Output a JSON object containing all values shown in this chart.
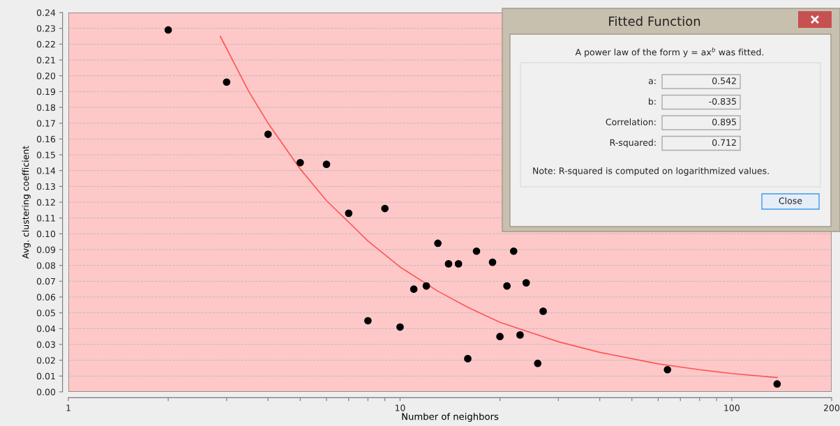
{
  "chart_data": {
    "type": "scatter",
    "xlabel": "Number of neighbors",
    "ylabel": "Avg. clustering coefficient",
    "log": "x",
    "grid": "y",
    "marker": "circle",
    "xlim": [
      1,
      200
    ],
    "ylim": [
      0,
      0.24
    ],
    "xticks": [
      1,
      {
        "value": 2,
        "label": null
      },
      {
        "value": 3,
        "label": null
      },
      {
        "value": 4,
        "label": null
      },
      {
        "value": 5,
        "label": null
      },
      {
        "value": 6,
        "label": null
      },
      {
        "value": 7,
        "label": null
      },
      {
        "value": 8,
        "label": null
      },
      {
        "value": 9,
        "label": null
      },
      10,
      {
        "value": 20,
        "label": null
      },
      {
        "value": 30,
        "label": null
      },
      {
        "value": 40,
        "label": null
      },
      {
        "value": 50,
        "label": null
      },
      {
        "value": 60,
        "label": null
      },
      {
        "value": 70,
        "label": null
      },
      {
        "value": 80,
        "label": null
      },
      {
        "value": 90,
        "label": null
      },
      100,
      200
    ],
    "yticks": [
      {
        "value": 0,
        "label": "0.00"
      },
      0.01,
      0.02,
      0.03,
      0.04,
      0.05,
      0.06,
      0.07,
      0.08,
      0.09,
      {
        "value": 0.1,
        "label": "0.10"
      },
      0.11,
      0.12,
      0.13,
      0.14,
      0.15,
      0.16,
      0.17,
      0.18,
      0.19,
      {
        "value": 0.2,
        "label": "0.20"
      },
      0.21,
      0.22,
      0.23,
      0.24
    ],
    "series": [
      {
        "color": "#000000",
        "x": [
          2,
          3,
          4,
          5,
          6,
          7,
          9,
          8,
          10,
          11,
          12,
          13,
          14,
          15,
          16,
          17,
          19,
          20,
          21,
          22,
          23,
          24,
          26,
          27,
          64,
          137
        ],
        "values": [
          0.229,
          0.196,
          0.163,
          0.145,
          0.144,
          0.113,
          0.116,
          0.045,
          0.041,
          0.065,
          0.067,
          0.094,
          0.081,
          0.081,
          0.021,
          0.089,
          0.082,
          0.035,
          0.067,
          0.089,
          0.036,
          0.069,
          0.018,
          0.051,
          0.014,
          0.005
        ]
      },
      {
        "type": "line",
        "color": "#ff5555",
        "marker": "none",
        "x": [
          2.87,
          3.5,
          4,
          5,
          6,
          8,
          10,
          13,
          16,
          20,
          30,
          40,
          60,
          80,
          100,
          137
        ],
        "values": [
          0.225,
          0.19,
          0.17,
          0.141,
          0.121,
          0.0955,
          0.079,
          0.0637,
          0.0535,
          0.044,
          0.0317,
          0.025,
          0.0177,
          0.014,
          0.0116,
          0.009
        ]
      }
    ],
    "annotations": [
      "Fitted Function",
      "A power law of the form y = ax$^{b}$ was fitted.",
      "a:",
      "0.542",
      "b:",
      "-0.835",
      "Correlation:",
      "0.895",
      "R-squared:",
      "0.712",
      "Note: R-squared is computed on logarithmized values.",
      "Close"
    ]
  }
}
